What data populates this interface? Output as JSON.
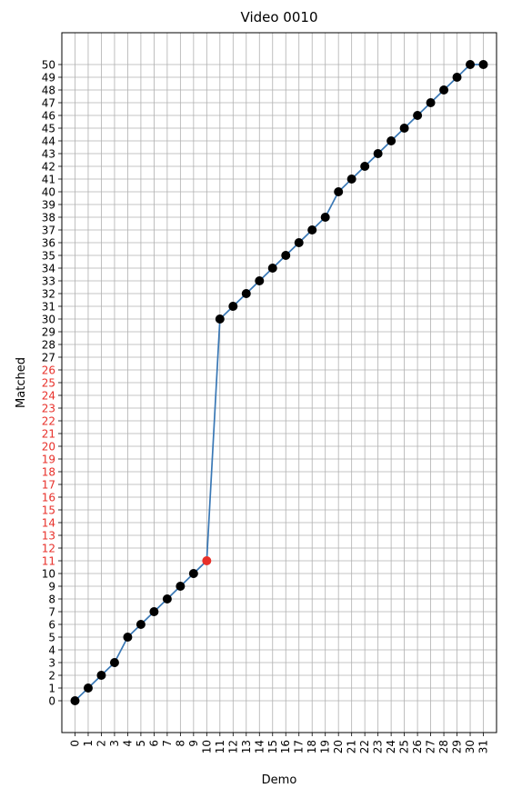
{
  "chart_data": {
    "type": "line",
    "title": "Video 0010",
    "xlabel": "Demo",
    "ylabel": "Matched",
    "xlim": [
      -1,
      32
    ],
    "ylim": [
      -2.5,
      52.5
    ],
    "x_ticks": [
      0,
      1,
      2,
      3,
      4,
      5,
      6,
      7,
      8,
      9,
      10,
      11,
      12,
      13,
      14,
      15,
      16,
      17,
      18,
      19,
      20,
      21,
      22,
      23,
      24,
      25,
      26,
      27,
      28,
      29,
      30,
      31
    ],
    "y_ticks": [
      0,
      1,
      2,
      3,
      4,
      5,
      6,
      7,
      8,
      9,
      10,
      11,
      12,
      13,
      14,
      15,
      16,
      17,
      18,
      19,
      20,
      21,
      22,
      23,
      24,
      25,
      26,
      27,
      28,
      29,
      30,
      31,
      32,
      33,
      34,
      35,
      36,
      37,
      38,
      39,
      40,
      41,
      42,
      43,
      44,
      45,
      46,
      47,
      48,
      49,
      50
    ],
    "highlighted_y_ticks": [
      11,
      12,
      13,
      14,
      15,
      16,
      17,
      18,
      19,
      20,
      21,
      22,
      23,
      24,
      25,
      26
    ],
    "grid": true,
    "series": [
      {
        "x": [
          0,
          1,
          2,
          3,
          4,
          5,
          6,
          7,
          8,
          9,
          10,
          11,
          12,
          13,
          14,
          15,
          16,
          17,
          18,
          19,
          20,
          21,
          22,
          23,
          24,
          25,
          26,
          27,
          28,
          29,
          30,
          31
        ],
        "values": [
          0,
          1,
          2,
          3,
          5,
          6,
          7,
          8,
          9,
          10,
          11,
          30,
          31,
          32,
          33,
          34,
          35,
          36,
          37,
          38,
          40,
          41,
          42,
          43,
          44,
          45,
          46,
          47,
          48,
          49,
          50,
          50
        ],
        "line_color": "#3a78b5",
        "marker_color": "#000000",
        "highlight_points": [
          10
        ],
        "highlight_color": "#e8302a"
      }
    ],
    "colors": {
      "tick_normal": "#000000",
      "tick_highlight": "#e8302a",
      "grid": "#b0b0b0"
    }
  }
}
